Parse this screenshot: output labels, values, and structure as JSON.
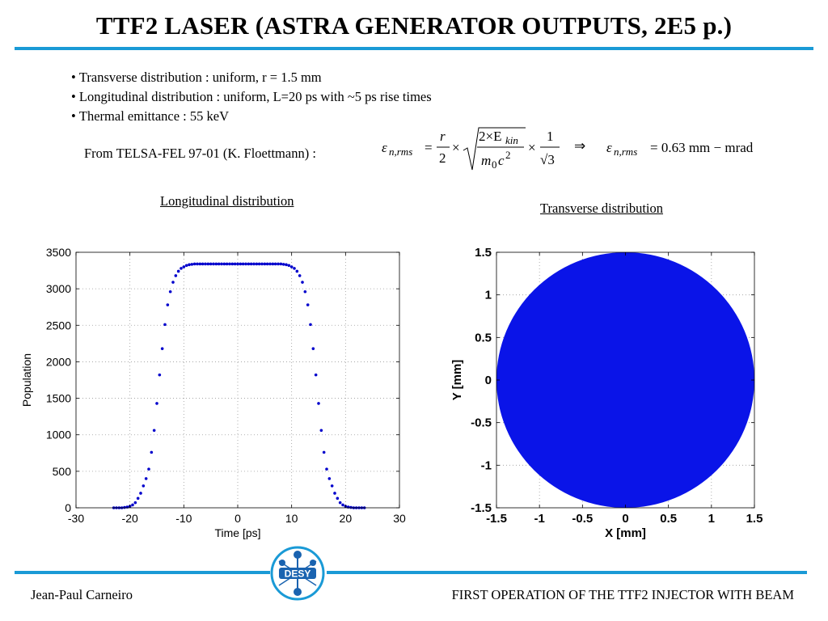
{
  "title": "TTF2 LASER (ASTRA GENERATOR OUTPUTS, 2E5 p.)",
  "bullets": [
    "Transverse distribution : uniform, r = 1.5 mm",
    "Longitudinal distribution : uniform, L=20 ps with ~5 ps rise times",
    "Thermal emittance : 55 keV"
  ],
  "from_text": "From  TELSA-FEL 97-01 (K. Floettmann) :",
  "formula": {
    "lhs_symbol": "ε",
    "lhs_sub": "n,rms",
    "frac1_num": "r",
    "frac1_den": "2",
    "times": "×",
    "sqrt_num": "2×E",
    "sqrt_num_sub": "kin",
    "sqrt_den": "m",
    "sqrt_den_sub": "0",
    "sqrt_den_rest": "c",
    "sqrt_den_sup": "2",
    "frac2_num": "1",
    "frac2_den": "√3",
    "implies": "⇒",
    "result": "= 0.63 mm − mrad"
  },
  "colors": {
    "accent": "#1a9ad6",
    "points": "#0000cc",
    "disk": "#0a14e8",
    "grid": "#9a9a9a"
  },
  "footer": {
    "left": "Jean-Paul Carneiro",
    "right": "FIRST OPERATION OF THE TTF2 INJECTOR WITH BEAM",
    "logo_text": "DESY"
  },
  "chart_data": [
    {
      "type": "scatter",
      "title": "Longitudinal distribution",
      "xlabel": "Time [ps]",
      "ylabel": "Population",
      "xlim": [
        -30,
        30
      ],
      "ylim": [
        0,
        3500
      ],
      "xticks": [
        -30,
        -20,
        -10,
        0,
        10,
        20,
        30
      ],
      "yticks": [
        0,
        500,
        1000,
        1500,
        2000,
        2500,
        3000,
        3500
      ],
      "grid": true,
      "series": [
        {
          "x": [
            -23.0,
            -22.5,
            -22.0,
            -21.5,
            -21.0,
            -20.5,
            -20.0,
            -19.5,
            -19.0,
            -18.5,
            -18.0,
            -17.5,
            -17.0,
            -16.5,
            -16.0,
            -15.5,
            -15.0,
            -14.5,
            -14.0,
            -13.5,
            -13.0,
            -12.5,
            -12.0,
            -11.5,
            -11.0,
            -10.5,
            -10.0,
            -9.5,
            -9.0,
            -8.5,
            -8.0,
            -7.5,
            -7.0,
            -6.5,
            -6.0,
            -5.5,
            -5.0,
            -4.5,
            -4.0,
            -3.5,
            -3.0,
            -2.5,
            -2.0,
            -1.5,
            -1.0,
            -0.5,
            0.0,
            0.5,
            1.0,
            1.5,
            2.0,
            2.5,
            3.0,
            3.5,
            4.0,
            4.5,
            5.0,
            5.5,
            6.0,
            6.5,
            7.0,
            7.5,
            8.0,
            8.5,
            9.0,
            9.5,
            10.0,
            10.5,
            11.0,
            11.5,
            12.0,
            12.5,
            13.0,
            13.5,
            14.0,
            14.5,
            15.0,
            15.5,
            16.0,
            16.5,
            17.0,
            17.5,
            18.0,
            18.5,
            19.0,
            19.5,
            20.0,
            20.5,
            21.0,
            21.5,
            22.0,
            22.5,
            23.0,
            23.5
          ],
          "y": [
            0,
            0,
            0,
            0,
            5,
            10,
            20,
            40,
            70,
            130,
            200,
            300,
            400,
            530,
            760,
            1060,
            1430,
            1820,
            2180,
            2510,
            2780,
            2960,
            3090,
            3180,
            3240,
            3280,
            3300,
            3320,
            3330,
            3335,
            3340,
            3340,
            3340,
            3340,
            3340,
            3340,
            3340,
            3340,
            3340,
            3340,
            3340,
            3340,
            3340,
            3340,
            3340,
            3340,
            3340,
            3340,
            3340,
            3340,
            3340,
            3340,
            3340,
            3340,
            3340,
            3340,
            3340,
            3340,
            3340,
            3340,
            3340,
            3340,
            3340,
            3335,
            3330,
            3320,
            3300,
            3280,
            3240,
            3180,
            3090,
            2960,
            2780,
            2510,
            2180,
            1820,
            1430,
            1060,
            760,
            530,
            400,
            300,
            200,
            130,
            70,
            40,
            20,
            10,
            5,
            0,
            0,
            0,
            0,
            0
          ]
        }
      ]
    },
    {
      "type": "scatter",
      "title": "Transverse distribution",
      "xlabel": "X [mm]",
      "ylabel": "Y [mm]",
      "xlim": [
        -1.5,
        1.5
      ],
      "ylim": [
        -1.5,
        1.5
      ],
      "xticks": [
        -1.5,
        -1,
        -0.5,
        0,
        0.5,
        1,
        1.5
      ],
      "yticks": [
        -1.5,
        -1,
        -0.5,
        0,
        0.5,
        1,
        1.5
      ],
      "grid": true,
      "disk": {
        "cx": 0,
        "cy": 0,
        "r": 1.5
      }
    }
  ]
}
